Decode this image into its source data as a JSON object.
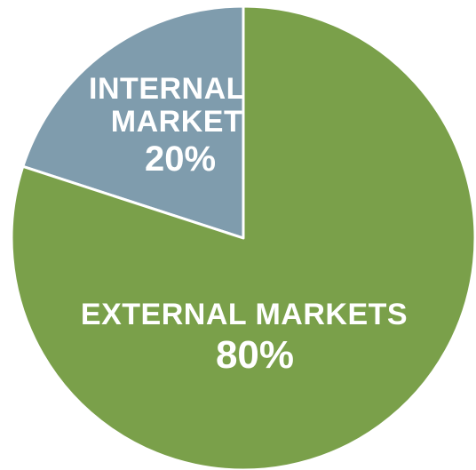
{
  "chart_data": {
    "type": "pie",
    "slices": [
      {
        "name_lines": [
          "INTERNAL",
          "MARKET"
        ],
        "value": 20,
        "value_label": "20%",
        "color": "#7f9cad"
      },
      {
        "name_lines": [
          "EXTERNAL MARKETS"
        ],
        "value": 80,
        "value_label": "80%",
        "color": "#7aa04a"
      }
    ],
    "start": "12 o'clock, counterclockwise",
    "slice_border_color": "#ffffff"
  }
}
